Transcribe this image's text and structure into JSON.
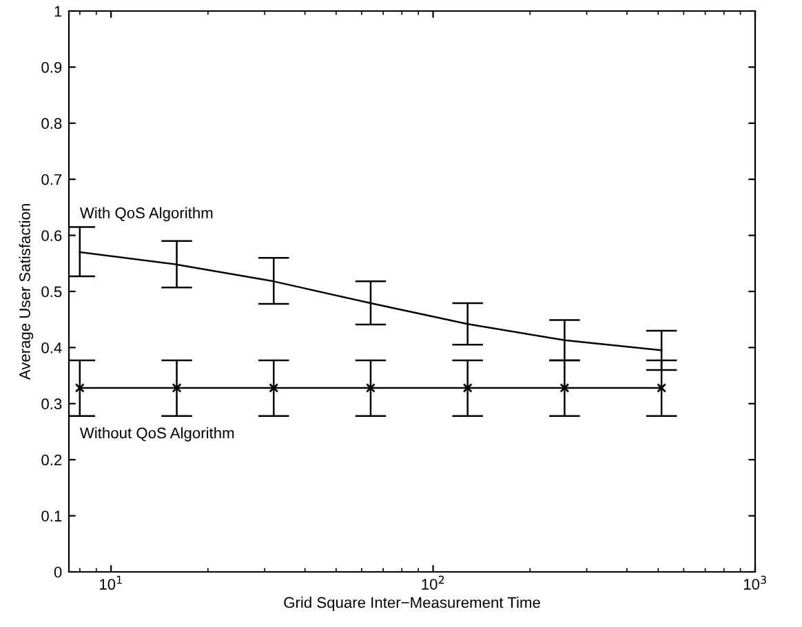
{
  "chart_data": {
    "type": "line",
    "xlabel": "Grid Square Inter−Measurement Time",
    "ylabel": "Average User Satisfaction",
    "log": "x",
    "xlim": [
      7.4,
      1000
    ],
    "xticks": [
      {
        "value": 10,
        "label": "10$^{1}$"
      },
      {
        "value": 100,
        "label": "10$^{2}$"
      },
      {
        "value": 1000,
        "label": "10$^{3}$"
      }
    ],
    "ylim": [
      0,
      1
    ],
    "yticks": [
      0,
      0.1,
      0.2,
      0.3,
      0.4,
      0.5,
      0.6,
      0.7,
      0.8,
      0.9,
      1
    ],
    "x": [
      8,
      16,
      32,
      64,
      128,
      256,
      512
    ],
    "grid": false,
    "legend": false,
    "series": [
      {
        "name": "With QoS Algorithm",
        "color": "#000000",
        "marker": "none",
        "values": [
          0.57,
          0.548,
          0.518,
          0.479,
          0.442,
          0.413,
          0.395
        ],
        "errors": [
          [
            0.527,
            0.615
          ],
          [
            0.507,
            0.59
          ],
          [
            0.478,
            0.56
          ],
          [
            0.441,
            0.518
          ],
          [
            0.405,
            0.479
          ],
          [
            0.377,
            0.449
          ],
          [
            0.36,
            0.43
          ]
        ]
      },
      {
        "name": "Without QoS Algorithm",
        "color": "#000000",
        "marker": "cross",
        "values": [
          0.328,
          0.328,
          0.328,
          0.328,
          0.328,
          0.328,
          0.328
        ],
        "errors": [
          [
            0.278,
            0.377
          ],
          [
            0.278,
            0.377
          ],
          [
            0.278,
            0.377
          ],
          [
            0.278,
            0.377
          ],
          [
            0.278,
            0.377
          ],
          [
            0.278,
            0.377
          ],
          [
            0.278,
            0.377
          ]
        ]
      }
    ]
  }
}
